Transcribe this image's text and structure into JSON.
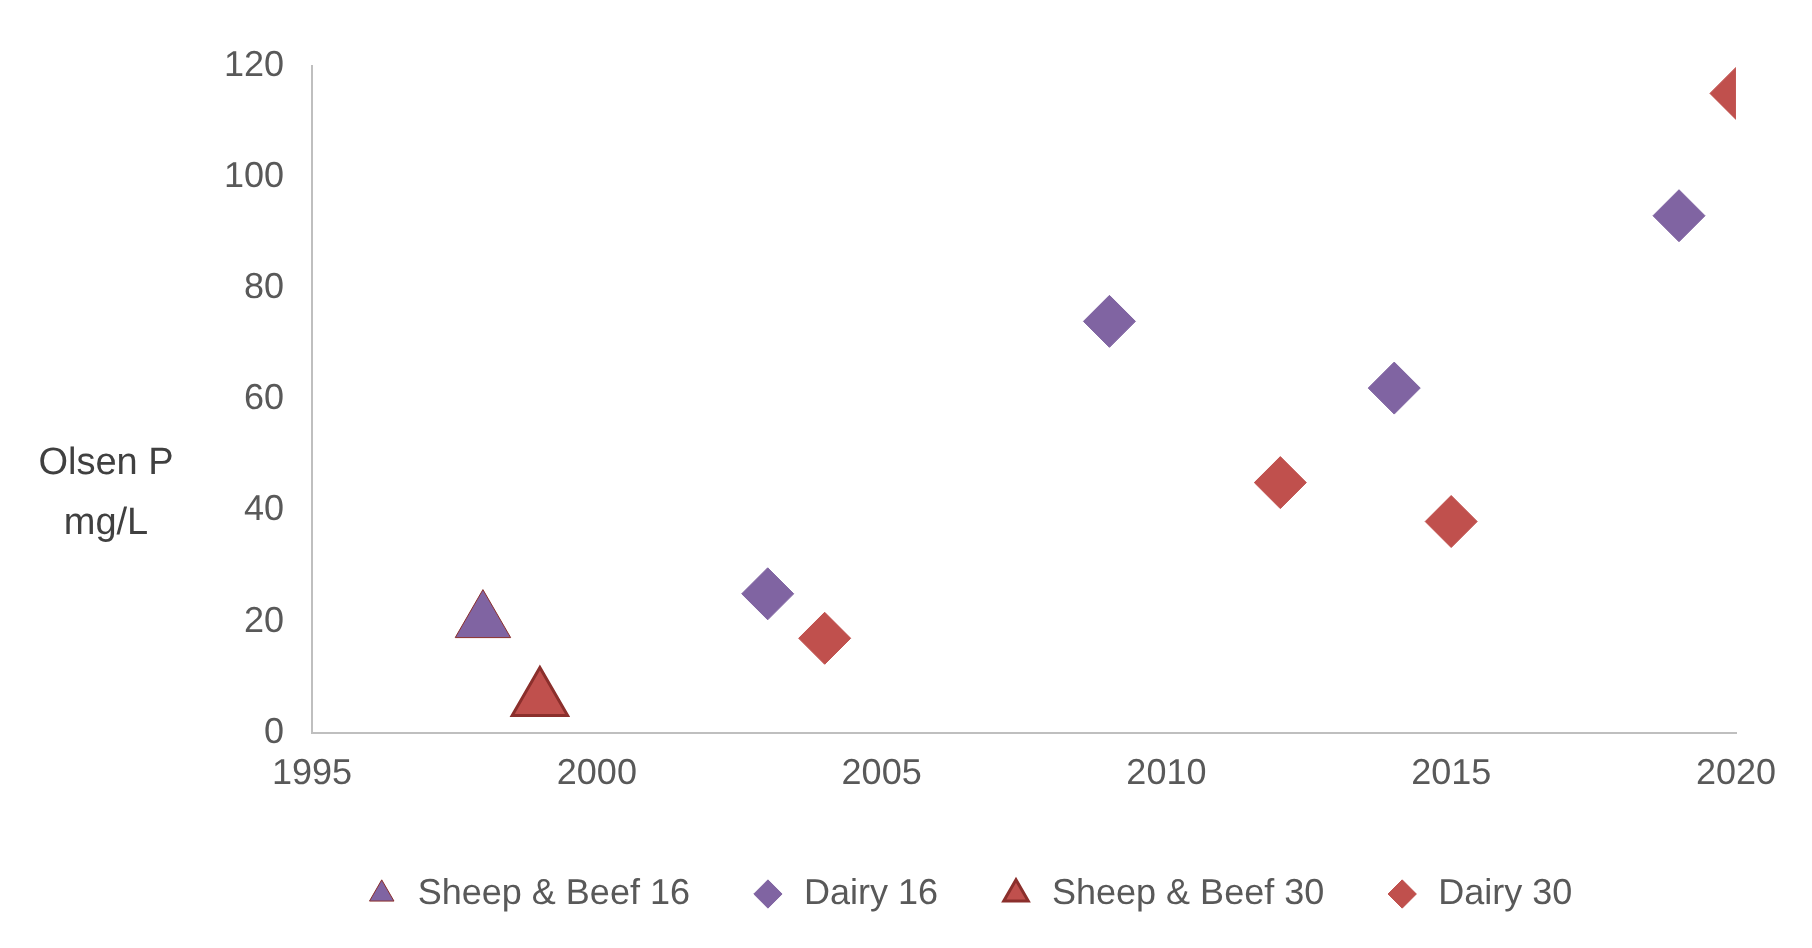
{
  "chart_data": {
    "type": "scatter",
    "ylabel": "Olsen P mg/L",
    "xlim": [
      1995,
      2020
    ],
    "xticks": [
      1995,
      2000,
      2005,
      2010,
      2015,
      2020
    ],
    "ylim": [
      0,
      120
    ],
    "yticks": [
      0,
      20,
      40,
      60,
      80,
      100,
      120
    ],
    "grid": false,
    "legend": "bottom",
    "series": [
      {
        "name": "Sheep & Beef 16",
        "color": "#8064a2",
        "marker": "triangle",
        "x": [
          1998
        ],
        "values": [
          20
        ]
      },
      {
        "name": "Dairy 16",
        "color": "#8064a2",
        "marker": "diamond",
        "x": [
          2003,
          2009,
          2014,
          2019
        ],
        "values": [
          25,
          74,
          62,
          93
        ]
      },
      {
        "name": "Sheep & Beef 30",
        "color": "#c0504d",
        "marker": "triangle",
        "x": [
          1999
        ],
        "values": [
          6
        ]
      },
      {
        "name": "Dairy 30",
        "color": "#c0504d",
        "marker": "diamond",
        "x": [
          2004,
          2012,
          2015,
          2020
        ],
        "values": [
          17,
          45,
          38,
          115
        ]
      }
    ]
  }
}
